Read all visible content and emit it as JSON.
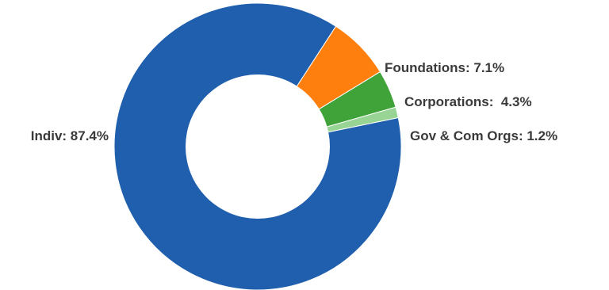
{
  "chart_data": {
    "type": "pie",
    "title": "",
    "categories": [
      "Indiv",
      "Foundations",
      "Corporations",
      "Gov & Com Orgs"
    ],
    "values": [
      87.4,
      7.1,
      4.3,
      1.2
    ],
    "labels": [
      "Indiv: 87.4%",
      "Foundations: 7.1%",
      "Corporations:  4.3%",
      "Gov & Com Orgs: 1.2%"
    ],
    "colors": [
      "#1f5fad",
      "#ff7f0e",
      "#3fa33a",
      "#98d594"
    ],
    "hole": true,
    "legend": "none"
  }
}
